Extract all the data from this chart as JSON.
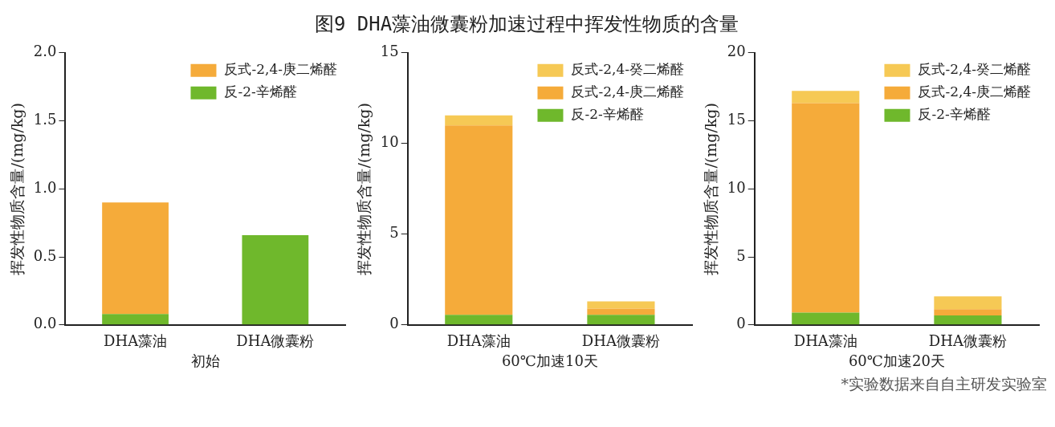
{
  "chart_data": [
    {
      "type": "bar",
      "categories": [
        "DHA藻油",
        "DHA微囊粉"
      ],
      "xlabel": "初始",
      "ylabel": "挥发性物质含量/(mg/kg)",
      "stacked": true,
      "legend": "top right",
      "grid": false,
      "ylim": [
        0,
        2
      ],
      "yticks": [
        {
          "value": 0,
          "label": "0.0"
        },
        {
          "value": 0.5,
          "label": "0.5"
        },
        {
          "value": 1,
          "label": "1.0"
        },
        {
          "value": 1.5,
          "label": "1.5"
        },
        {
          "value": 2,
          "label": "2.0"
        }
      ],
      "series": [
        {
          "name": "反-2-辛烯醛",
          "color": "#6fb82c",
          "values": [
            0.08,
            0.66
          ]
        },
        {
          "name": "反式-2,4-庚二烯醛",
          "color": "#f5ab3a",
          "values": [
            0.82,
            0
          ]
        }
      ]
    },
    {
      "type": "bar",
      "title": "图9 DHA藻油微囊粉加速过程中挥发性物质的含量",
      "categories": [
        "DHA藻油",
        "DHA微囊粉"
      ],
      "xlabel": "60℃加速10天",
      "ylabel": "挥发性物质含量/(mg/kg)",
      "stacked": true,
      "legend": "top right",
      "grid": false,
      "ylim": [
        0,
        15
      ],
      "yticks": [
        0,
        5,
        10,
        15
      ],
      "series": [
        {
          "name": "反-2-辛烯醛",
          "color": "#6fb82c",
          "values": [
            0.55,
            0.55
          ]
        },
        {
          "name": "反式-2,4-庚二烯醛",
          "color": "#f5ab3a",
          "values": [
            10.45,
            0.35
          ]
        },
        {
          "name": "反式-2,4-癸二烯醛",
          "color": "#f6c955",
          "values": [
            0.55,
            0.4
          ]
        }
      ]
    },
    {
      "type": "bar",
      "categories": [
        "DHA藻油",
        "DHA微囊粉"
      ],
      "xlabel": "60℃加速20天",
      "ylabel": "挥发性物质含量/(mg/kg)",
      "stacked": true,
      "legend": "top right",
      "grid": false,
      "ylim": [
        0,
        20
      ],
      "yticks": [
        0,
        5,
        10,
        15,
        20
      ],
      "annotations": [
        "*实验数据来自自主研发实验室"
      ],
      "series": [
        {
          "name": "反-2-辛烯醛",
          "color": "#6fb82c",
          "values": [
            0.9,
            0.7
          ]
        },
        {
          "name": "反式-2,4-庚二烯醛",
          "color": "#f5ab3a",
          "values": [
            15.4,
            0.45
          ]
        },
        {
          "name": "反式-2,4-癸二烯醛",
          "color": "#f6c955",
          "values": [
            0.9,
            0.95
          ]
        }
      ]
    }
  ]
}
